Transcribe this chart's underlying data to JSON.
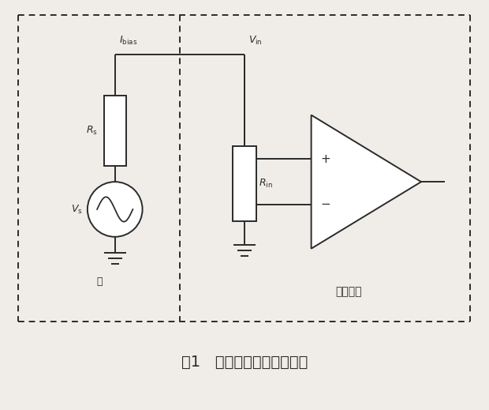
{
  "fig_width": 6.2,
  "fig_height": 5.19,
  "dpi": 100,
  "bg_color": "#f0ede8",
  "line_color": "#2a2a2a",
  "title": "图1   高阻抗信号测量原理图",
  "title_fontsize": 15,
  "label_ibias": "$I_{\\mathrm{bias}}$",
  "label_vin": "$V_{\\mathrm{in}}$",
  "label_rs": "$R_{\\mathrm{s}}$",
  "label_vs": "$V_{\\mathrm{s}}$",
  "label_yuan": "源",
  "label_rin": "$R_{\\mathrm{in}}$",
  "label_system": "测量系统",
  "plus_sign": "+",
  "minus_sign": "−"
}
